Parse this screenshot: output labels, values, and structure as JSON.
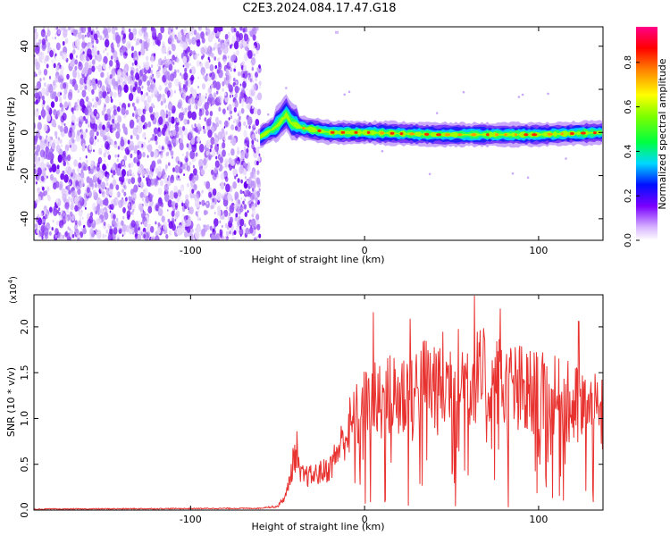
{
  "title": "C2E3.2024.084.17.47.G18",
  "spectrogram": {
    "type": "heatmap",
    "xlabel": "Height of straight line (km)",
    "ylabel": "Frequency (Hz)",
    "xlim": [
      -190,
      137
    ],
    "ylim": [
      -50,
      49
    ],
    "xticks": [
      -100,
      0,
      100
    ],
    "xtick_labels": [
      "-100",
      "0",
      "100"
    ],
    "yticks": [
      40,
      20,
      0,
      -20,
      -40
    ],
    "ytick_labels": [
      "40",
      "20",
      "0",
      "-20",
      "-40"
    ],
    "noise_region_end_km": -60,
    "signal_band_start_km": -60,
    "signal_band_center_hz": [
      [
        -60,
        -2
      ],
      [
        -50,
        3
      ],
      [
        -45,
        8
      ],
      [
        -42,
        4
      ],
      [
        -35,
        2
      ],
      [
        -20,
        0
      ],
      [
        0,
        0
      ],
      [
        40,
        -1
      ],
      [
        80,
        -1
      ],
      [
        100,
        -1
      ],
      [
        137,
        0
      ]
    ]
  },
  "colorbar": {
    "label": "Normalized spectral amplitude",
    "ticks": [
      0.0,
      0.2,
      0.4,
      0.6,
      0.8
    ],
    "tick_labels": [
      "0.0",
      "0.2",
      "0.4",
      "0.6",
      "0.8"
    ],
    "range": [
      0.0,
      0.96
    ]
  },
  "chart_data": {
    "type": "line",
    "xlabel": "Height of straight line (km)",
    "ylabel": "SNR (10 * v/v)",
    "yscale_label": "(x10",
    "yscale_exp": "4",
    "xlim": [
      -190,
      137
    ],
    "ylim": [
      0,
      2.35
    ],
    "xticks": [
      -100,
      0,
      100
    ],
    "xtick_labels": [
      "-100",
      "0",
      "100"
    ],
    "yticks": [
      0.0,
      0.5,
      1.0,
      1.5,
      2.0
    ],
    "ytick_labels": [
      "0.0",
      "0.5",
      "1.0",
      "1.5",
      "2.0"
    ],
    "color": "#e8322f",
    "envelope": [
      {
        "x": -190,
        "y": 0.01
      },
      {
        "x": -60,
        "y": 0.02
      },
      {
        "x": -50,
        "y": 0.05
      },
      {
        "x": -45,
        "y": 0.2
      },
      {
        "x": -40,
        "y": 0.75
      },
      {
        "x": -37,
        "y": 0.45
      },
      {
        "x": -30,
        "y": 0.45
      },
      {
        "x": -20,
        "y": 0.55
      },
      {
        "x": -12,
        "y": 0.95
      },
      {
        "x": 0,
        "y": 1.3
      },
      {
        "x": 20,
        "y": 1.5
      },
      {
        "x": 40,
        "y": 1.65
      },
      {
        "x": 60,
        "y": 1.7
      },
      {
        "x": 80,
        "y": 1.6
      },
      {
        "x": 100,
        "y": 1.45
      },
      {
        "x": 120,
        "y": 1.35
      },
      {
        "x": 137,
        "y": 1.2
      }
    ],
    "peaks": [
      {
        "x": -39,
        "y": 0.86
      },
      {
        "x": 5,
        "y": 2.16
      },
      {
        "x": 26,
        "y": 2.09
      },
      {
        "x": 63,
        "y": 2.34
      },
      {
        "x": 78,
        "y": 2.2
      },
      {
        "x": 123,
        "y": 2.06
      }
    ]
  }
}
